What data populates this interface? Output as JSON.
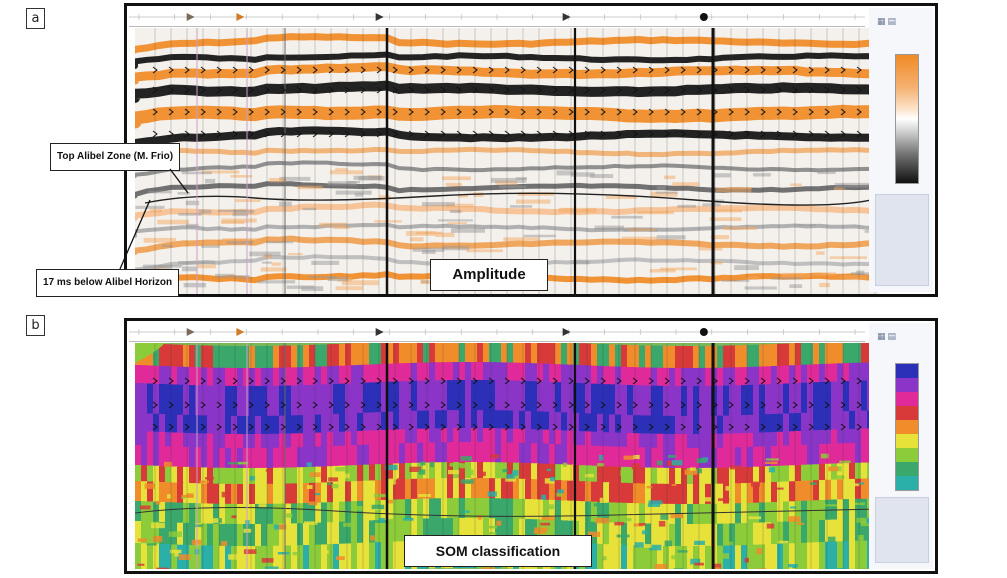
{
  "panels": [
    {
      "tag": "a",
      "caption": "Amplitude"
    },
    {
      "tag": "b",
      "caption": "SOM classification"
    }
  ],
  "annotations": {
    "top_horizon": "Top Alibel Zone (M. Frio)",
    "below_horizon": "17 ms below Alibel Horizon"
  },
  "colors": {
    "amplitude_positive": "#f08a24",
    "amplitude_negative": "#111111",
    "som_palette": [
      "#2c2fb8",
      "#8a35c8",
      "#e02a9a",
      "#d83a3a",
      "#f08c2a",
      "#e6e23a",
      "#8ccc3a",
      "#3aa86a",
      "#2ab0a8"
    ]
  }
}
